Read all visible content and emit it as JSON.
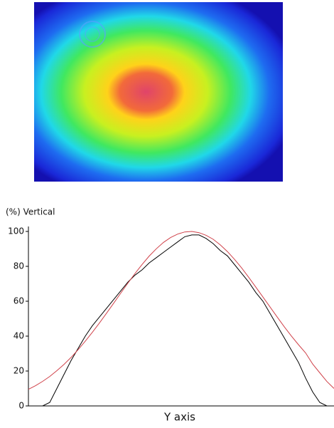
{
  "chart_data": {
    "type": "line",
    "title": "(%) Vertical",
    "x_label": "Y axis",
    "categories": [
      null,
      null,
      null,
      null,
      null,
      null,
      null,
      null,
      null,
      null,
      null,
      null,
      null,
      null,
      null,
      null,
      null,
      null,
      null,
      null,
      null,
      null,
      null,
      null,
      null,
      null,
      null,
      null,
      null,
      null,
      null,
      null,
      null,
      null,
      null,
      null,
      null,
      null,
      null,
      null,
      null,
      null,
      null,
      null
    ],
    "series": [
      {
        "color": "#000000",
        "values": [
          0,
          0,
          0,
          2,
          10,
          18,
          26,
          33,
          40,
          46,
          51,
          56,
          61,
          66,
          71,
          75,
          78,
          82,
          85,
          88,
          91,
          94,
          97,
          98,
          98,
          96,
          93,
          89,
          86,
          81,
          76,
          71,
          65,
          60,
          53,
          46,
          39,
          32,
          25,
          16,
          8,
          2,
          0,
          0
        ]
      },
      {
        "color": "#d0424a",
        "values": [
          9.5,
          11.6,
          14.1,
          16.9,
          20.2,
          23.8,
          27.8,
          32.3,
          37.1,
          42.2,
          47.6,
          53.2,
          58.9,
          64.7,
          70.4,
          75.9,
          81.1,
          85.9,
          90.1,
          93.7,
          96.5,
          98.5,
          99.7,
          100,
          99.3,
          97.8,
          95.5,
          92.3,
          88.5,
          84,
          79.1,
          73.7,
          68.1,
          62.4,
          56.7,
          51,
          45.4,
          40.1,
          35.1,
          30.4,
          24,
          19,
          14,
          10
        ]
      }
    ],
    "ylim": [
      0,
      100
    ],
    "yticks": [
      0,
      20,
      40,
      60,
      80,
      100
    ]
  }
}
